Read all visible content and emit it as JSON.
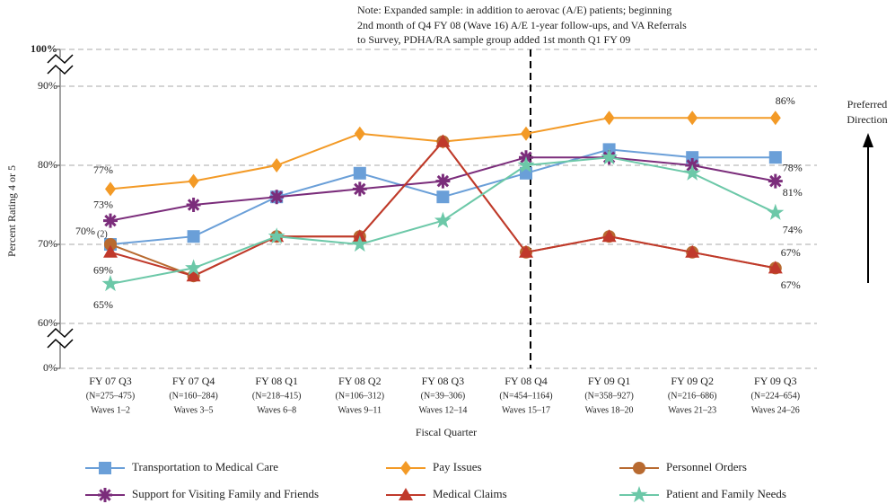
{
  "chart_data": {
    "type": "line",
    "note": [
      "Note: Expanded sample: in addition to aerovac (A/E) patients; beginning",
      "2nd month of Q4 FY 08 (Wave 16) A/E 1-year follow-ups, and VA Referrals",
      "to Survey, PDHA/RA sample group added 1st month Q1 FY 09"
    ],
    "y_label": "Percent Rating 4 or 5",
    "x_label": "Fiscal Quarter",
    "direction_label": [
      "Preferred",
      "Direction"
    ],
    "label_footnote": "(2)",
    "categories": [
      [
        "FY 07 Q3",
        "(N=275–475)",
        "Waves 1–2"
      ],
      [
        "FY 07 Q4",
        "(N=160–284)",
        "Waves 3–5"
      ],
      [
        "FY 08 Q1",
        "(N=218–415)",
        "Waves 6–8"
      ],
      [
        "FY 08 Q2",
        "(N=106–312)",
        "Waves 9–11"
      ],
      [
        "FY 08 Q3",
        "(N=39–306)",
        "Waves 12–14"
      ],
      [
        "FY 08 Q4",
        "(N=454–1164)",
        "Waves 15–17"
      ],
      [
        "FY 09 Q1",
        "(N=358–927)",
        "Waves 18–20"
      ],
      [
        "FY 09 Q2",
        "(N=216–686)",
        "Waves 21–23"
      ],
      [
        "FY 09 Q3",
        "(N=224–654)",
        "Waves 24–26"
      ]
    ],
    "divider_category": 5,
    "ylim": [
      0,
      100
    ],
    "axis_breaks": [
      [
        0,
        60
      ],
      [
        90,
        100
      ]
    ],
    "yticks": [
      {
        "value": 0,
        "label": "0%"
      },
      {
        "value": 60,
        "label": "60%"
      },
      {
        "value": 70,
        "label": "70%"
      },
      {
        "value": 80,
        "label": "80%"
      },
      {
        "value": 90,
        "label": "90%"
      },
      {
        "value": 100,
        "label": "100%"
      }
    ],
    "grid": true,
    "series": [
      {
        "name": "Transportation to Medical Care",
        "color": "#6a9fd8",
        "marker": "square",
        "values": [
          70,
          71,
          76,
          79,
          76,
          79,
          82,
          81,
          81
        ],
        "value_labels": [
          "70%",
          null,
          null,
          null,
          null,
          null,
          null,
          null,
          "81%"
        ]
      },
      {
        "name": "Pay Issues",
        "color": "#f39a26",
        "marker": "diamond",
        "values": [
          77,
          78,
          80,
          84,
          83,
          84,
          86,
          86,
          86
        ],
        "value_labels": [
          "77%",
          null,
          null,
          null,
          null,
          null,
          null,
          null,
          "86%"
        ]
      },
      {
        "name": "Personnel Orders",
        "color": "#b86a30",
        "marker": "circle",
        "values": [
          70,
          66,
          71,
          71,
          83,
          69,
          71,
          69,
          67
        ],
        "value_labels": [
          null,
          null,
          null,
          null,
          null,
          null,
          null,
          null,
          "67%"
        ]
      },
      {
        "name": "Support for Visiting Family and Friends",
        "color": "#7b2d7b",
        "marker": "asterisk",
        "values": [
          73,
          75,
          76,
          77,
          78,
          81,
          81,
          80,
          78
        ],
        "value_labels": [
          "73%",
          null,
          null,
          null,
          null,
          null,
          null,
          null,
          "78%"
        ]
      },
      {
        "name": "Medical Claims",
        "color": "#c0392b",
        "marker": "triangle",
        "values": [
          69,
          66,
          71,
          71,
          83,
          69,
          71,
          69,
          67
        ],
        "value_labels": [
          "69%",
          null,
          null,
          null,
          null,
          null,
          null,
          null,
          "67%"
        ]
      },
      {
        "name": "Patient and Family Needs",
        "color": "#6cc8a8",
        "marker": "star",
        "values": [
          65,
          67,
          71,
          70,
          73,
          80,
          81,
          79,
          74
        ],
        "value_labels": [
          "65%",
          null,
          null,
          null,
          null,
          null,
          null,
          null,
          "74%"
        ]
      }
    ]
  }
}
